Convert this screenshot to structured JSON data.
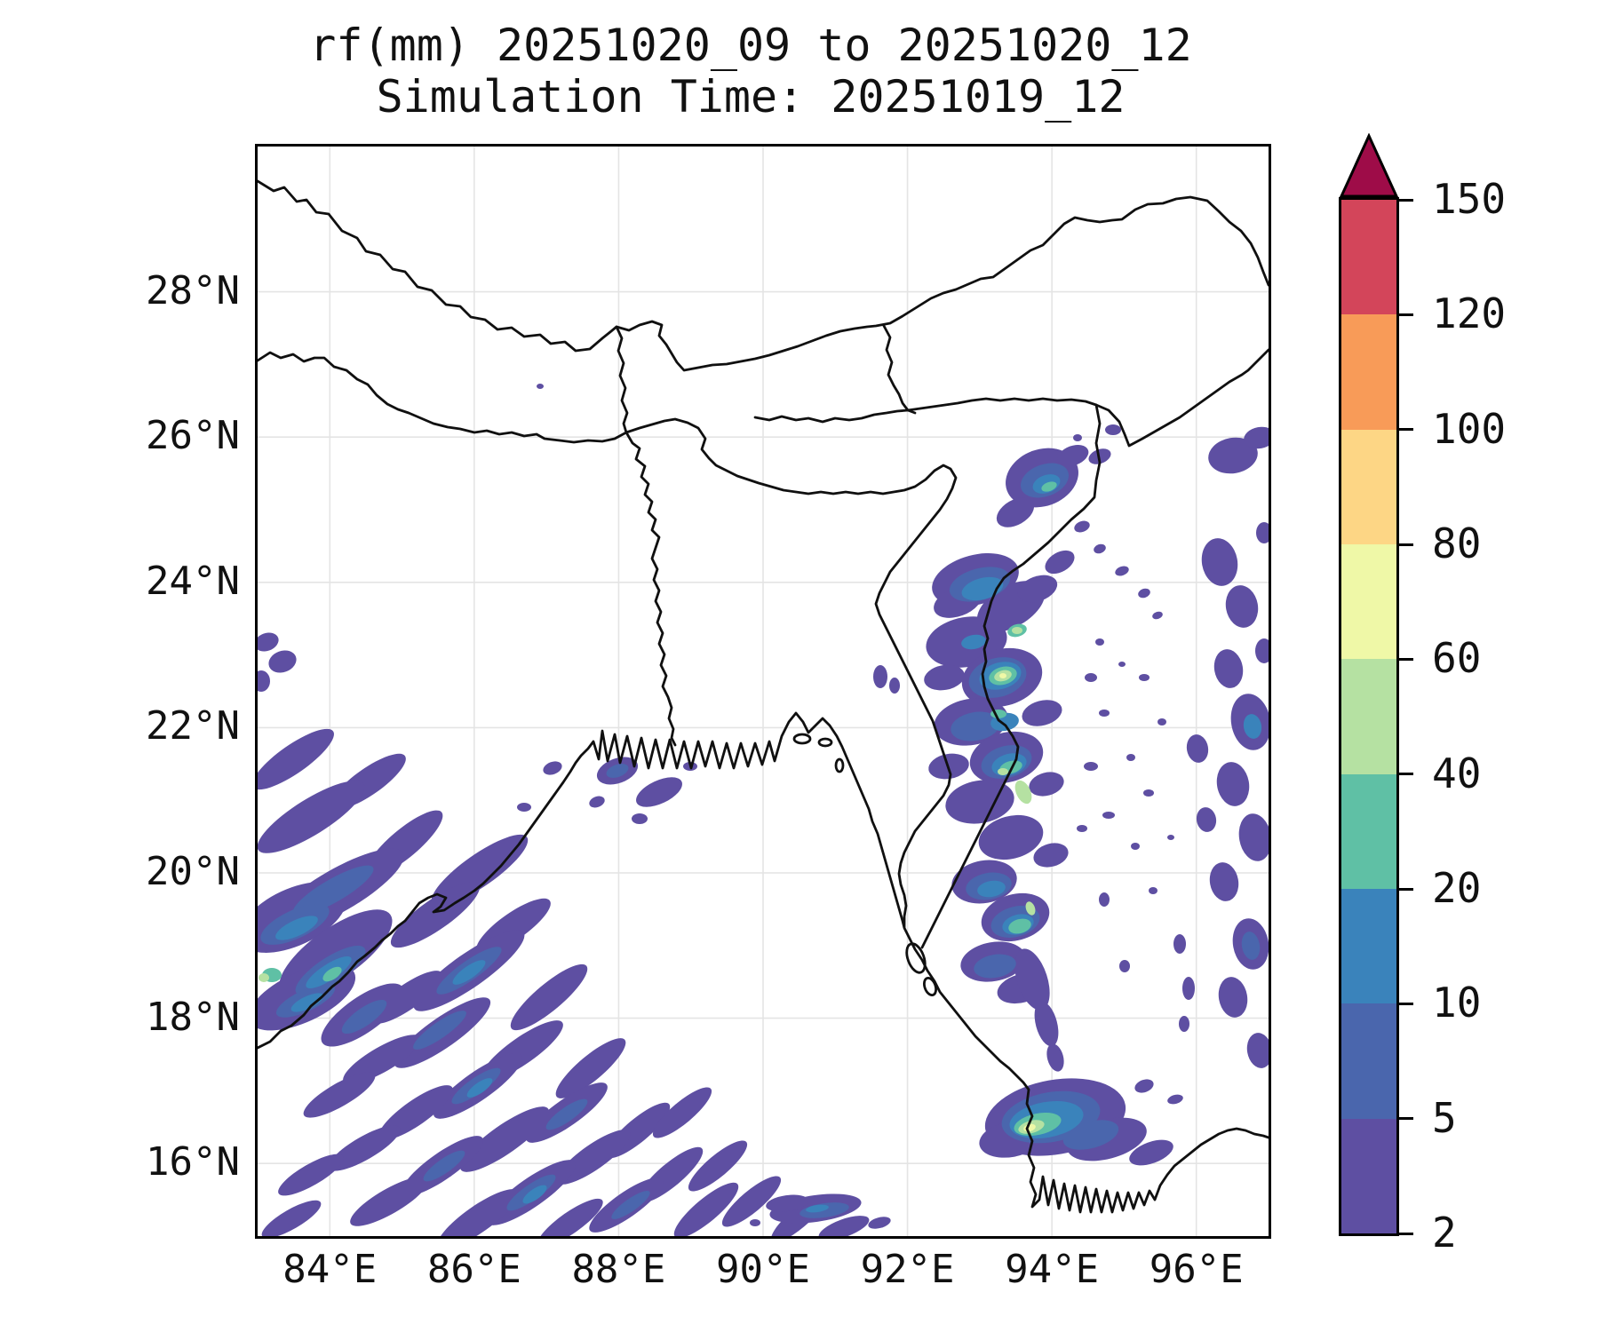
{
  "title": {
    "line1": "rf(mm) 20251020_09 to 20251020_12",
    "line2": "Simulation Time: 20251019_12"
  },
  "axes": {
    "x_ticks": [
      {
        "label": "84°E",
        "value": 84
      },
      {
        "label": "86°E",
        "value": 86
      },
      {
        "label": "88°E",
        "value": 88
      },
      {
        "label": "90°E",
        "value": 90
      },
      {
        "label": "92°E",
        "value": 92
      },
      {
        "label": "94°E",
        "value": 94
      },
      {
        "label": "96°E",
        "value": 96
      }
    ],
    "y_ticks": [
      {
        "label": "28°N",
        "value": 28
      },
      {
        "label": "26°N",
        "value": 26
      },
      {
        "label": "24°N",
        "value": 24
      },
      {
        "label": "22°N",
        "value": 22
      },
      {
        "label": "20°N",
        "value": 20
      },
      {
        "label": "18°N",
        "value": 18
      },
      {
        "label": "16°N",
        "value": 16
      }
    ]
  },
  "map": {
    "extent": {
      "lon_min": 83,
      "lon_max": 97,
      "lat_min": 15,
      "lat_max": 30
    },
    "grid_color": "#e4e4e4",
    "coast_color": "#101010"
  },
  "colorbar": {
    "units": "mm",
    "levels": [
      2,
      5,
      10,
      20,
      40,
      60,
      80,
      100,
      120,
      150
    ],
    "colors_low_to_high": [
      "#5e4fa2",
      "#4a66ad",
      "#3a83bb",
      "#5fc0a5",
      "#b5e1a2",
      "#eff8a7",
      "#fdd685",
      "#f89b58",
      "#d3455a"
    ],
    "extend_color": "#9e0c48",
    "outline_color": "#000000"
  },
  "chart_data": {
    "type": "heatmap",
    "subtype": "filled-contour rainfall map",
    "variable": "rf (accumulated rainfall)",
    "units": "mm",
    "valid_period": "20251020_09 to 20251020_12",
    "simulation_time": "20251019_12",
    "title": "rf(mm) 20251020_09 to 20251020_12",
    "subtitle": "Simulation Time: 20251019_12",
    "xlabel_ticks": [
      "84°E",
      "86°E",
      "88°E",
      "90°E",
      "92°E",
      "94°E",
      "96°E"
    ],
    "ylabel_ticks": [
      "16°N",
      "18°N",
      "20°N",
      "22°N",
      "24°N",
      "26°N",
      "28°N"
    ],
    "xlim_lon": [
      83,
      97
    ],
    "ylim_lat": [
      15,
      30
    ],
    "grid": true,
    "legend_position": "right colorbar, vertical, extend max arrow",
    "contour_levels_mm": [
      2,
      5,
      10,
      20,
      40,
      60,
      80,
      100,
      120,
      150
    ],
    "rain_regions": [
      {
        "area": "Bay of Bengal off Odisha/Andhra coast, 83-88.5E / 15-20.5N",
        "pattern": "dense SW-NE oriented streaks",
        "intensity_mm": "2-10 with 10-20 cores, one 40-60 spot near 83.2E/18.5N"
      },
      {
        "area": "Chin-Rakhine band along 93-94E from 17N to 25.5N",
        "pattern": "continuous N-S band over India-Myanmar border",
        "intensity_mm": "5-40 with bullseyes 60-80 near 93.4E/22.7N and 40-60 near 93.5E/21.3N"
      },
      {
        "area": "NE cluster near 93.6E/25.3N",
        "pattern": "compact cell",
        "intensity_mm": "10-40"
      },
      {
        "area": "Irrawaddy delta 93.3-94.5E / 16-16.8N",
        "pattern": "elongated coastal cell",
        "intensity_mm": "up to 60-80 core"
      },
      {
        "area": "Eastern edge 95.5-97E, 18-26N",
        "pattern": "scattered blobs along map edge",
        "intensity_mm": "2-20"
      },
      {
        "area": "Bottom center 90-91.5E / 15-15.5N",
        "pattern": "small cells at lower boundary",
        "intensity_mm": "2-20"
      },
      {
        "area": "Left edge 83E / 23-23.6N",
        "pattern": "few tiny cells",
        "intensity_mm": "2-5"
      }
    ],
    "maxima": [
      {
        "lon": 93.4,
        "lat": 22.7,
        "value_mm": "60-80"
      },
      {
        "lon": 93.6,
        "lat": 16.4,
        "value_mm": "60-80"
      },
      {
        "lon": 93.5,
        "lat": 21.2,
        "value_mm": "40-60"
      },
      {
        "lon": 93.6,
        "lat": 25.3,
        "value_mm": "20-40"
      },
      {
        "lon": 83.2,
        "lat": 18.5,
        "value_mm": "40-60"
      }
    ]
  }
}
